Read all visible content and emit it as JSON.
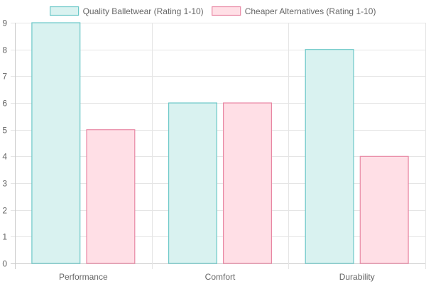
{
  "chart_data": {
    "type": "bar",
    "categories": [
      "Performance",
      "Comfort",
      "Durability"
    ],
    "series": [
      {
        "name": "Quality Balletwear (Rating 1-10)",
        "values": [
          9,
          6,
          8
        ],
        "color": "#6cc8c8",
        "fill": "#d9f2f0"
      },
      {
        "name": "Cheaper Alternatives (Rating 1-10)",
        "values": [
          5,
          6,
          4
        ],
        "color": "#e887a3",
        "fill": "#ffdfe6"
      }
    ],
    "ylim": [
      0,
      9
    ],
    "yticks": [
      0,
      1,
      2,
      3,
      4,
      5,
      6,
      7,
      8,
      9
    ],
    "grid": true,
    "legend": "top"
  }
}
